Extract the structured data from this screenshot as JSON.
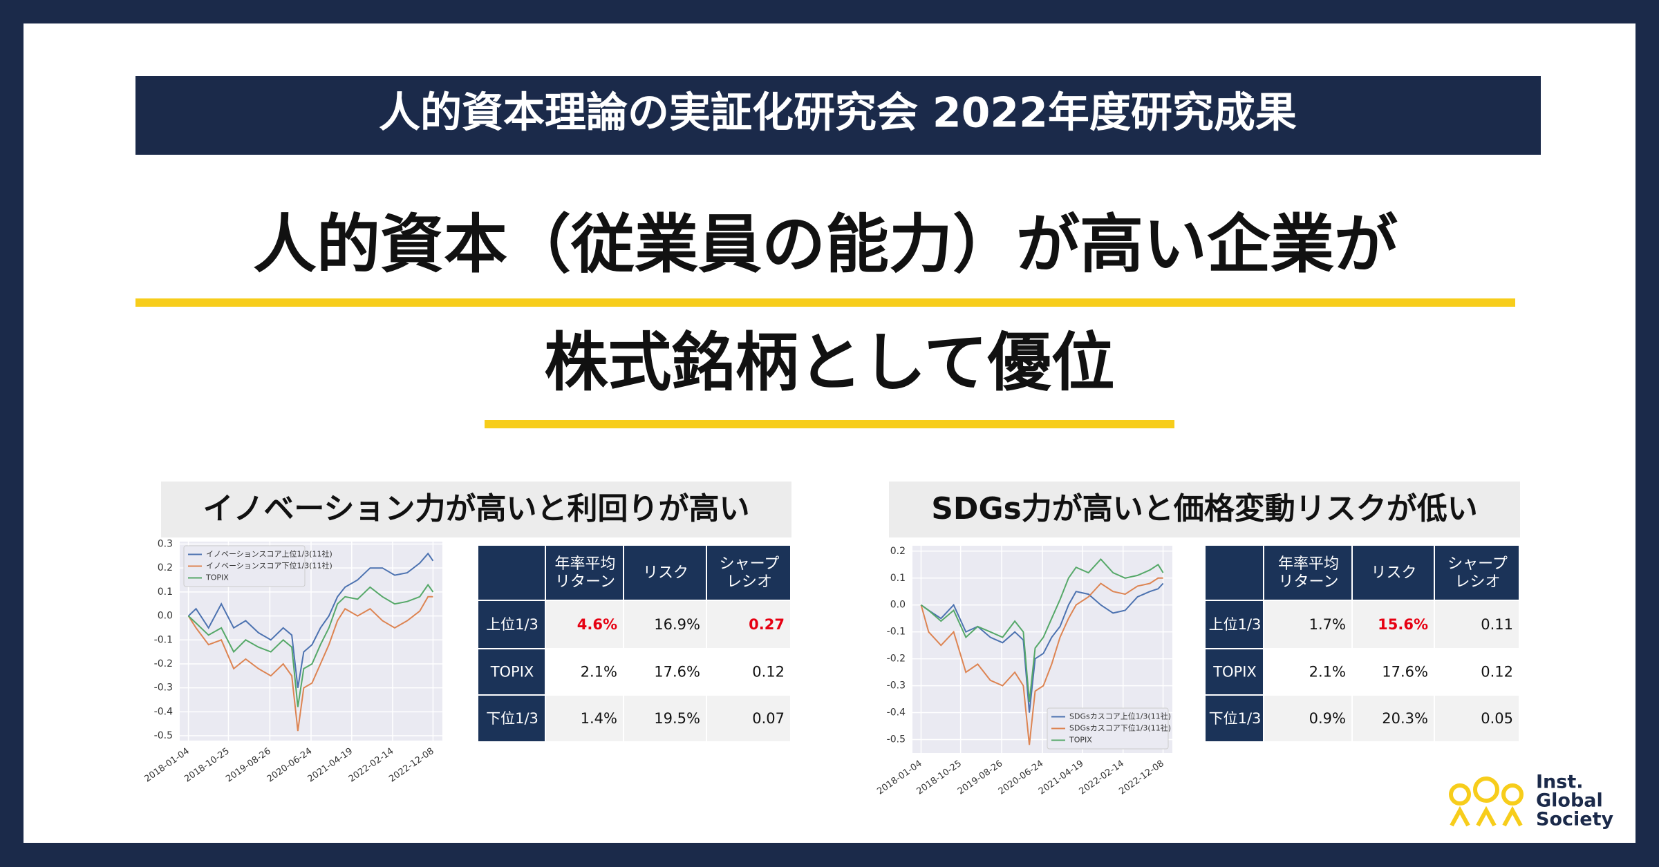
{
  "header": {
    "title": "人的資本理論の実証化研究会 2022年度研究成果"
  },
  "headline": {
    "line1": "人的資本（従業員の能力）が高い企業が",
    "line2": "株式銘柄として優位"
  },
  "panels": [
    {
      "heading": "イノベーション力が高いと利回りが高い",
      "table": {
        "columns": [
          "年率平均\nリターン",
          "リスク",
          "シャープ\nレシオ"
        ],
        "rows": [
          {
            "label": "上位1/3",
            "cells": [
              {
                "text": "4.6%",
                "color": "#e60012"
              },
              "16.9%",
              {
                "text": "0.27",
                "color": "#e60012"
              }
            ]
          },
          {
            "label": "TOPIX",
            "cells": [
              "2.1%",
              "17.6%",
              "0.12"
            ]
          },
          {
            "label": "下位1/3",
            "cells": [
              "1.4%",
              "19.5%",
              "0.07"
            ]
          }
        ]
      }
    },
    {
      "heading": "SDGs力が高いと価格変動リスクが低い",
      "table": {
        "columns": [
          "年率平均\nリターン",
          "リスク",
          "シャープ\nレシオ"
        ],
        "rows": [
          {
            "label": "上位1/3",
            "cells": [
              "1.7%",
              {
                "text": "15.6%",
                "color": "#e60012"
              },
              "0.11"
            ]
          },
          {
            "label": "TOPIX",
            "cells": [
              "2.1%",
              "17.6%",
              "0.12"
            ]
          },
          {
            "label": "下位1/3",
            "cells": [
              "0.9%",
              "20.3%",
              "0.05"
            ]
          }
        ]
      }
    }
  ],
  "chart_data": [
    {
      "type": "line",
      "x": [
        "2018-01-04",
        "2018-03-01",
        "2018-06-01",
        "2018-09-03",
        "2018-12-03",
        "2019-03-01",
        "2019-06-03",
        "2019-09-02",
        "2019-12-02",
        "2020-02-03",
        "2020-03-19",
        "2020-05-01",
        "2020-07-01",
        "2020-09-01",
        "2020-11-02",
        "2021-01-04",
        "2021-03-01",
        "2021-06-01",
        "2021-09-01",
        "2021-12-01",
        "2022-03-01",
        "2022-06-01",
        "2022-09-01",
        "2022-11-01",
        "2022-12-08"
      ],
      "series": [
        {
          "name": "イノベーションスコア上位1/3(11社)",
          "color": "#4c72b0",
          "values": [
            0,
            0.03,
            -0.05,
            0.05,
            -0.05,
            -0.02,
            -0.07,
            -0.1,
            -0.05,
            -0.08,
            -0.3,
            -0.15,
            -0.12,
            -0.05,
            0.0,
            0.08,
            0.12,
            0.15,
            0.2,
            0.2,
            0.17,
            0.18,
            0.22,
            0.26,
            0.23
          ]
        },
        {
          "name": "イノベーションスコア下位1/3(11社)",
          "color": "#dd8452",
          "values": [
            0,
            -0.05,
            -0.12,
            -0.1,
            -0.22,
            -0.18,
            -0.22,
            -0.25,
            -0.2,
            -0.25,
            -0.48,
            -0.3,
            -0.28,
            -0.2,
            -0.12,
            -0.02,
            0.03,
            0.0,
            0.03,
            -0.02,
            -0.05,
            -0.02,
            0.02,
            0.08,
            0.08
          ]
        },
        {
          "name": "TOPIX",
          "color": "#55a868",
          "values": [
            0,
            -0.03,
            -0.08,
            -0.05,
            -0.15,
            -0.1,
            -0.13,
            -0.15,
            -0.1,
            -0.13,
            -0.38,
            -0.22,
            -0.2,
            -0.12,
            -0.05,
            0.05,
            0.08,
            0.07,
            0.12,
            0.08,
            0.05,
            0.06,
            0.08,
            0.13,
            0.1
          ]
        }
      ],
      "xlim": [
        "2017-11-01",
        "2023-02-15"
      ],
      "xticks": [
        "2018-01-04",
        "2018-10-25",
        "2019-08-26",
        "2020-06-24",
        "2021-04-19",
        "2022-02-14",
        "2022-12-08"
      ],
      "ylim": [
        -0.52,
        0.31
      ],
      "yticks": [
        -0.5,
        -0.4,
        -0.3,
        -0.2,
        -0.1,
        {
          "value": 0,
          "label": "0.0"
        },
        0.1,
        0.2,
        0.3
      ],
      "grid": true,
      "legend": "upper left"
    },
    {
      "type": "line",
      "x": [
        "2018-01-04",
        "2018-03-01",
        "2018-06-01",
        "2018-09-03",
        "2018-12-03",
        "2019-03-01",
        "2019-06-03",
        "2019-09-02",
        "2019-12-02",
        "2020-02-03",
        "2020-03-19",
        "2020-05-01",
        "2020-07-01",
        "2020-09-01",
        "2020-11-02",
        "2021-01-04",
        "2021-03-01",
        "2021-06-01",
        "2021-09-01",
        "2021-12-01",
        "2022-03-01",
        "2022-06-01",
        "2022-09-01",
        "2022-11-01",
        "2022-12-08"
      ],
      "series": [
        {
          "name": "SDGsカスコア上位1/3(11社)",
          "color": "#4c72b0",
          "values": [
            0,
            -0.02,
            -0.05,
            0.0,
            -0.1,
            -0.08,
            -0.12,
            -0.14,
            -0.1,
            -0.13,
            -0.4,
            -0.2,
            -0.18,
            -0.12,
            -0.08,
            0.0,
            0.05,
            0.04,
            0.0,
            -0.03,
            -0.02,
            0.03,
            0.05,
            0.06,
            0.08
          ]
        },
        {
          "name": "SDGsカスコア下位1/3(11社)",
          "color": "#dd8452",
          "values": [
            0,
            -0.1,
            -0.15,
            -0.1,
            -0.25,
            -0.22,
            -0.28,
            -0.3,
            -0.25,
            -0.3,
            -0.52,
            -0.32,
            -0.3,
            -0.22,
            -0.12,
            -0.05,
            0.0,
            0.03,
            0.08,
            0.05,
            0.04,
            0.07,
            0.08,
            0.1,
            0.1
          ]
        },
        {
          "name": "TOPIX",
          "color": "#55a868",
          "values": [
            0,
            -0.02,
            -0.06,
            -0.02,
            -0.12,
            -0.08,
            -0.1,
            -0.12,
            -0.06,
            -0.1,
            -0.36,
            -0.16,
            -0.12,
            -0.05,
            0.02,
            0.1,
            0.14,
            0.12,
            0.17,
            0.12,
            0.1,
            0.11,
            0.13,
            0.15,
            0.12
          ]
        }
      ],
      "xlim": [
        "2017-11-01",
        "2023-02-15"
      ],
      "xticks": [
        "2018-01-04",
        "2018-10-25",
        "2019-08-26",
        "2020-06-24",
        "2021-04-19",
        "2022-02-14",
        "2022-12-08"
      ],
      "ylim": [
        -0.55,
        0.22
      ],
      "yticks": [
        -0.5,
        -0.4,
        -0.3,
        -0.2,
        -0.1,
        {
          "value": 0,
          "label": "0.0"
        },
        0.1,
        0.2
      ],
      "grid": true,
      "legend": "lower right"
    }
  ],
  "logo": {
    "lines": [
      "Inst.",
      "Global",
      "Society"
    ]
  }
}
